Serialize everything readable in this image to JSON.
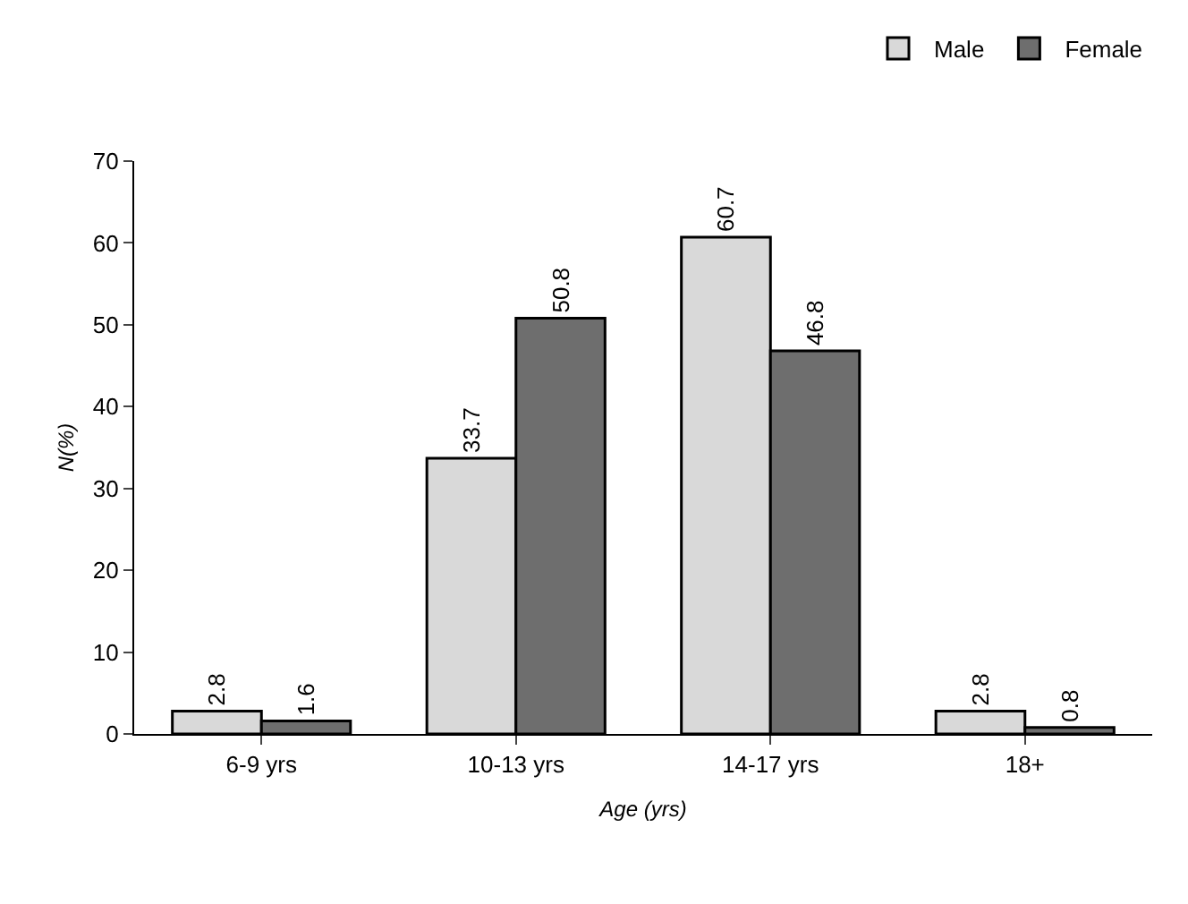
{
  "chart_data": {
    "type": "bar",
    "categories": [
      "6-9 yrs",
      "10-13 yrs",
      "14-17 yrs",
      "18+"
    ],
    "series": [
      {
        "name": "Male",
        "color": "#d9d9d9",
        "values": [
          2.8,
          33.7,
          60.7,
          2.8
        ]
      },
      {
        "name": "Female",
        "color": "#6e6e6e",
        "values": [
          1.6,
          50.8,
          46.8,
          0.8
        ]
      }
    ],
    "xlabel": "Age (yrs)",
    "ylabel": "N(%)",
    "ylim": [
      0,
      70
    ],
    "yticks": [
      0,
      10,
      20,
      30,
      40,
      50,
      60,
      70
    ],
    "data_labels": true,
    "grid": false,
    "legend": "top right"
  }
}
